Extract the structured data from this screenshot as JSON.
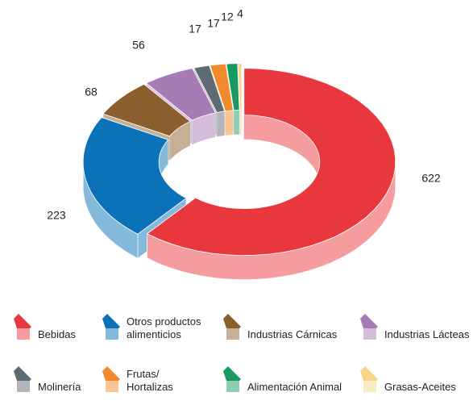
{
  "chart_data": {
    "type": "donut3d",
    "categories": [
      "Bebidas",
      "Otros productos\nalimenticios",
      "Industrias Cárnicas",
      "Industrias Lácteas",
      "Molinería",
      "Frutas/\nHortalizas",
      "Alimentación Animal",
      "Grasas-Aceites"
    ],
    "values": [
      622,
      223,
      68,
      56,
      17,
      17,
      12,
      4
    ],
    "colors": [
      "#e8383d",
      "#0b72b9",
      "#8b5e2e",
      "#a77bb5",
      "#5f6b73",
      "#f08a2c",
      "#1a9a63",
      "#f9d48b"
    ],
    "legend": "bottom"
  }
}
